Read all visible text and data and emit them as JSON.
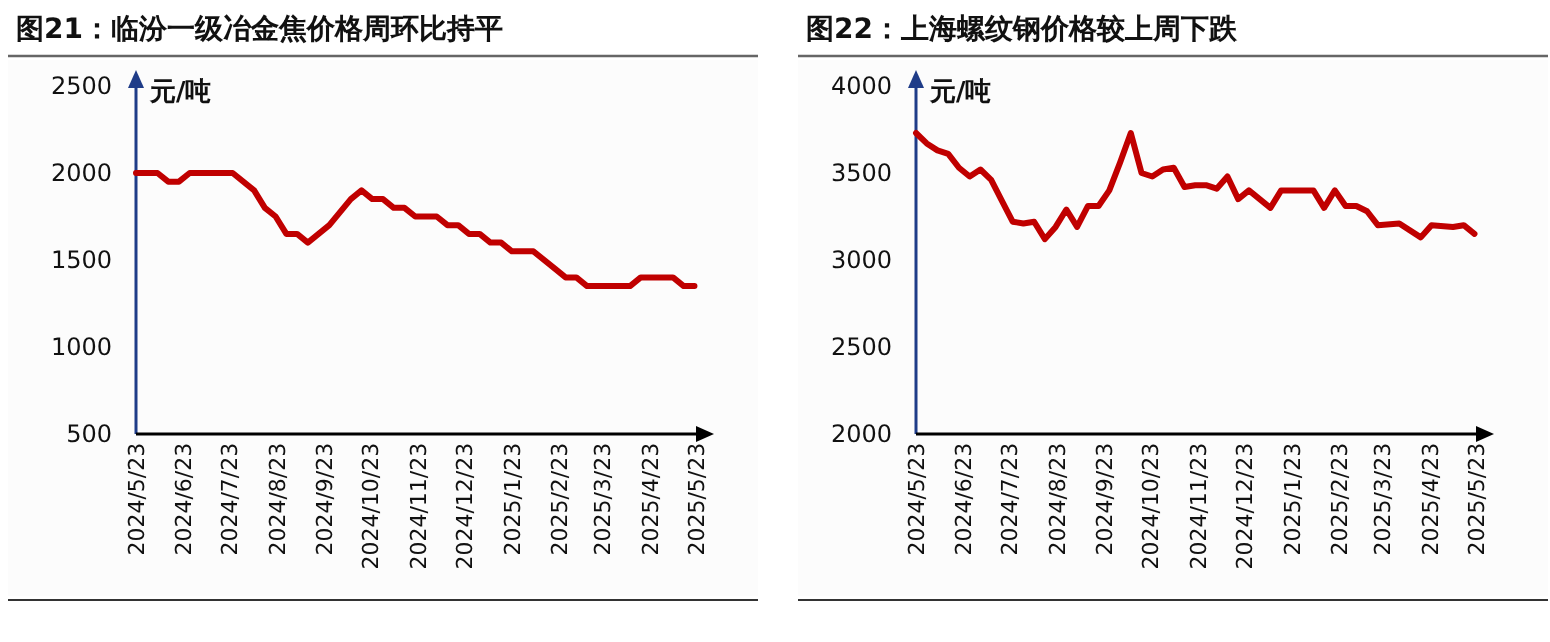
{
  "chart_data": [
    {
      "type": "line",
      "title": "图21：临汾一级冶金焦价格周环比持平",
      "ylabel": "元/吨",
      "grid": false,
      "marker": "none",
      "line_style": "solid",
      "xlim": [
        "2024-05-23",
        "2025-05-23"
      ],
      "ylim": [
        500,
        2500
      ],
      "yticks": [
        500,
        1000,
        1500,
        2000,
        2500
      ],
      "xticks": [
        {
          "value": "2024-05-23",
          "label": "2024/5/23"
        },
        {
          "value": "2024-06-23",
          "label": "2024/6/23"
        },
        {
          "value": "2024-07-23",
          "label": "2024/7/23"
        },
        {
          "value": "2024-08-23",
          "label": "2024/8/23"
        },
        {
          "value": "2024-09-23",
          "label": "2024/9/23"
        },
        {
          "value": "2024-10-23",
          "label": "2024/10/23"
        },
        {
          "value": "2024-11-23",
          "label": "2024/11/23"
        },
        {
          "value": "2024-12-23",
          "label": "2024/12/23"
        },
        {
          "value": "2025-01-23",
          "label": "2025/1/23"
        },
        {
          "value": "2025-02-23",
          "label": "2025/2/23"
        },
        {
          "value": "2025-03-23",
          "label": "2025/3/23"
        },
        {
          "value": "2025-04-23",
          "label": "2025/4/23"
        },
        {
          "value": "2025-05-23",
          "label": "2025/5/23"
        }
      ],
      "series": [
        {
          "color": "#c00000",
          "x": [
            "2024-05-23",
            "2024-06-06",
            "2024-06-13",
            "2024-06-20",
            "2024-06-27",
            "2024-07-25",
            "2024-08-08",
            "2024-08-15",
            "2024-08-22",
            "2024-08-29",
            "2024-09-05",
            "2024-09-12",
            "2024-09-26",
            "2024-10-10",
            "2024-10-17",
            "2024-10-24",
            "2024-10-31",
            "2024-11-07",
            "2024-11-14",
            "2024-11-21",
            "2024-12-05",
            "2024-12-12",
            "2024-12-19",
            "2024-12-26",
            "2025-01-02",
            "2025-01-09",
            "2025-01-16",
            "2025-01-23",
            "2025-02-06",
            "2025-02-20",
            "2025-02-27",
            "2025-03-06",
            "2025-03-13",
            "2025-04-10",
            "2025-04-17",
            "2025-05-08",
            "2025-05-15",
            "2025-05-22"
          ],
          "values": [
            2000,
            2000,
            1950,
            1950,
            2000,
            2000,
            1900,
            1800,
            1750,
            1650,
            1650,
            1600,
            1700,
            1850,
            1900,
            1850,
            1850,
            1800,
            1800,
            1750,
            1750,
            1700,
            1700,
            1650,
            1650,
            1600,
            1600,
            1550,
            1550,
            1450,
            1400,
            1400,
            1350,
            1350,
            1400,
            1400,
            1350,
            1350
          ]
        }
      ]
    },
    {
      "type": "line",
      "title": "图22：上海螺纹钢价格较上周下跌",
      "ylabel": "元/吨",
      "grid": false,
      "marker": "none",
      "line_style": "solid",
      "xlim": [
        "2024-05-23",
        "2025-05-23"
      ],
      "ylim": [
        2000,
        4000
      ],
      "yticks": [
        2000,
        2500,
        3000,
        3500,
        4000
      ],
      "xticks": [
        {
          "value": "2024-05-23",
          "label": "2024/5/23"
        },
        {
          "value": "2024-06-23",
          "label": "2024/6/23"
        },
        {
          "value": "2024-07-23",
          "label": "2024/7/23"
        },
        {
          "value": "2024-08-23",
          "label": "2024/8/23"
        },
        {
          "value": "2024-09-23",
          "label": "2024/9/23"
        },
        {
          "value": "2024-10-23",
          "label": "2024/10/23"
        },
        {
          "value": "2024-11-23",
          "label": "2024/11/23"
        },
        {
          "value": "2024-12-23",
          "label": "2024/12/23"
        },
        {
          "value": "2025-01-23",
          "label": "2025/1/23"
        },
        {
          "value": "2025-02-23",
          "label": "2025/2/23"
        },
        {
          "value": "2025-03-23",
          "label": "2025/3/23"
        },
        {
          "value": "2025-04-23",
          "label": "2025/4/23"
        },
        {
          "value": "2025-05-23",
          "label": "2025/5/23"
        }
      ],
      "series": [
        {
          "color": "#c00000",
          "x": [
            "2024-05-23",
            "2024-05-30",
            "2024-06-06",
            "2024-06-13",
            "2024-06-20",
            "2024-06-27",
            "2024-07-04",
            "2024-07-11",
            "2024-07-18",
            "2024-07-25",
            "2024-08-01",
            "2024-08-08",
            "2024-08-15",
            "2024-08-22",
            "2024-08-29",
            "2024-09-05",
            "2024-09-12",
            "2024-09-19",
            "2024-09-26",
            "2024-10-03",
            "2024-10-10",
            "2024-10-17",
            "2024-10-24",
            "2024-10-31",
            "2024-11-07",
            "2024-11-14",
            "2024-11-21",
            "2024-11-28",
            "2024-12-05",
            "2024-12-12",
            "2024-12-19",
            "2024-12-26",
            "2025-01-09",
            "2025-01-16",
            "2025-02-06",
            "2025-02-13",
            "2025-02-20",
            "2025-02-27",
            "2025-03-06",
            "2025-03-13",
            "2025-03-20",
            "2025-04-03",
            "2025-04-17",
            "2025-04-24",
            "2025-05-08",
            "2025-05-15",
            "2025-05-22"
          ],
          "values": [
            3730,
            3670,
            3630,
            3610,
            3530,
            3480,
            3520,
            3460,
            3340,
            3220,
            3210,
            3220,
            3120,
            3190,
            3290,
            3190,
            3310,
            3310,
            3400,
            3560,
            3730,
            3500,
            3480,
            3520,
            3530,
            3420,
            3430,
            3430,
            3410,
            3480,
            3350,
            3400,
            3300,
            3400,
            3400,
            3300,
            3400,
            3310,
            3310,
            3280,
            3200,
            3210,
            3130,
            3200,
            3190,
            3200,
            3150
          ]
        }
      ]
    }
  ]
}
